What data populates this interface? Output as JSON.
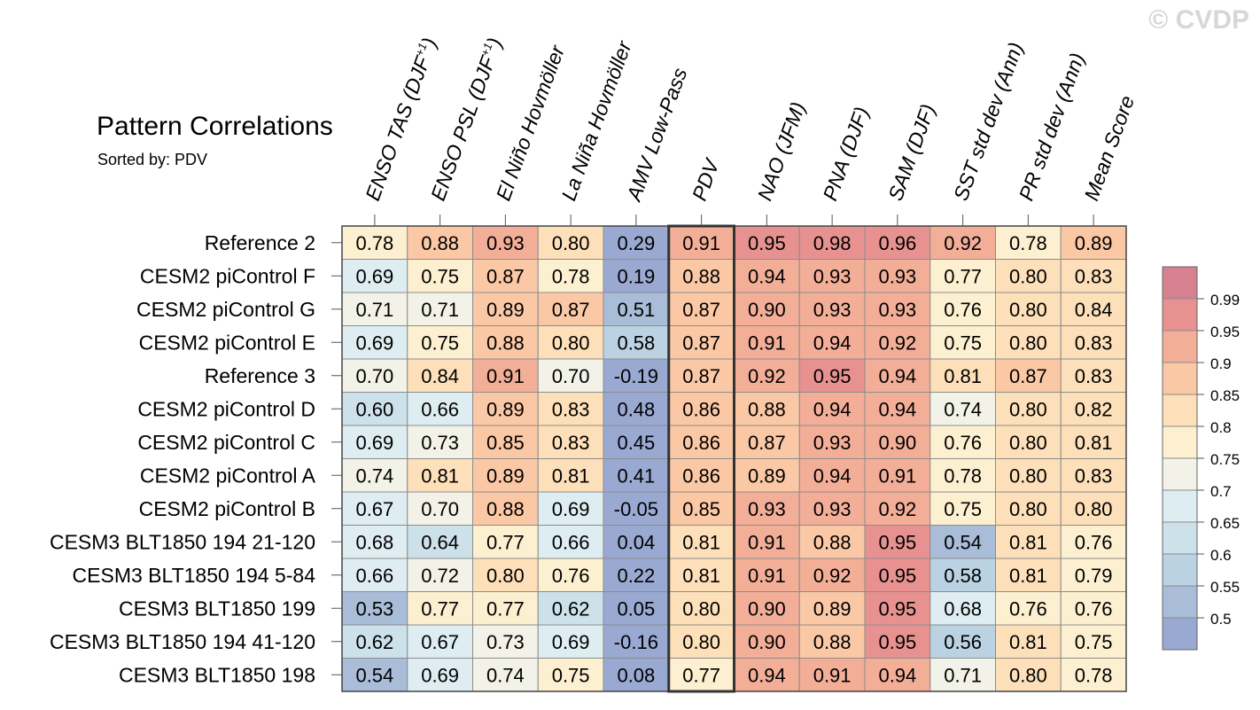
{
  "watermark": "© CVDP",
  "title": "Pattern Correlations",
  "subtitle": "Sorted by: PDV",
  "chart_data": {
    "type": "heatmap",
    "title": "Pattern Correlations",
    "subtitle": "Sorted by: PDV",
    "highlighted_column": "PDV",
    "columns": [
      {
        "label": "ENSO TAS (DJF",
        "sup": "+1",
        "tail": ")"
      },
      {
        "label": "ENSO PSL (DJF",
        "sup": "+1",
        "tail": ")"
      },
      {
        "label": "El Niño Hovmöller",
        "sup": "",
        "tail": ""
      },
      {
        "label": "La Niña Hovmöller",
        "sup": "",
        "tail": ""
      },
      {
        "label": "AMV Low-Pass",
        "sup": "",
        "tail": ""
      },
      {
        "label": "PDV",
        "sup": "",
        "tail": ""
      },
      {
        "label": "NAO (JFM)",
        "sup": "",
        "tail": ""
      },
      {
        "label": "PNA (DJF)",
        "sup": "",
        "tail": ""
      },
      {
        "label": "SAM (DJF)",
        "sup": "",
        "tail": ""
      },
      {
        "label": "SST std dev (Ann)",
        "sup": "",
        "tail": ""
      },
      {
        "label": "PR std dev (Ann)",
        "sup": "",
        "tail": ""
      },
      {
        "label": "Mean Score",
        "sup": "",
        "tail": ""
      }
    ],
    "rows": [
      {
        "name": "Reference 2",
        "values": [
          0.78,
          0.88,
          0.93,
          0.8,
          0.29,
          0.91,
          0.95,
          0.98,
          0.96,
          0.92,
          0.78,
          0.89
        ]
      },
      {
        "name": "CESM2 piControl F",
        "values": [
          0.69,
          0.75,
          0.87,
          0.78,
          0.19,
          0.88,
          0.94,
          0.93,
          0.93,
          0.77,
          0.8,
          0.83
        ]
      },
      {
        "name": "CESM2 piControl G",
        "values": [
          0.71,
          0.71,
          0.89,
          0.87,
          0.51,
          0.87,
          0.9,
          0.93,
          0.93,
          0.76,
          0.8,
          0.84
        ]
      },
      {
        "name": "CESM2 piControl E",
        "values": [
          0.69,
          0.75,
          0.88,
          0.8,
          0.58,
          0.87,
          0.91,
          0.94,
          0.92,
          0.75,
          0.8,
          0.83
        ]
      },
      {
        "name": "Reference 3",
        "values": [
          0.7,
          0.84,
          0.91,
          0.7,
          -0.19,
          0.87,
          0.92,
          0.95,
          0.94,
          0.81,
          0.87,
          0.83
        ]
      },
      {
        "name": "CESM2 piControl D",
        "values": [
          0.6,
          0.66,
          0.89,
          0.83,
          0.48,
          0.86,
          0.88,
          0.94,
          0.94,
          0.74,
          0.8,
          0.82
        ]
      },
      {
        "name": "CESM2 piControl C",
        "values": [
          0.69,
          0.73,
          0.85,
          0.83,
          0.45,
          0.86,
          0.87,
          0.93,
          0.9,
          0.76,
          0.8,
          0.81
        ]
      },
      {
        "name": "CESM2 piControl A",
        "values": [
          0.74,
          0.81,
          0.89,
          0.81,
          0.41,
          0.86,
          0.89,
          0.94,
          0.91,
          0.78,
          0.8,
          0.83
        ]
      },
      {
        "name": "CESM2 piControl B",
        "values": [
          0.67,
          0.7,
          0.88,
          0.69,
          -0.05,
          0.85,
          0.93,
          0.93,
          0.92,
          0.75,
          0.8,
          0.8
        ]
      },
      {
        "name": "CESM3 BLT1850 194 21-120",
        "values": [
          0.68,
          0.64,
          0.77,
          0.66,
          0.04,
          0.81,
          0.91,
          0.88,
          0.95,
          0.54,
          0.81,
          0.76
        ]
      },
      {
        "name": "CESM3 BLT1850 194 5-84",
        "values": [
          0.66,
          0.72,
          0.8,
          0.76,
          0.22,
          0.81,
          0.91,
          0.92,
          0.95,
          0.58,
          0.81,
          0.79
        ]
      },
      {
        "name": "CESM3 BLT1850 199",
        "values": [
          0.53,
          0.77,
          0.77,
          0.62,
          0.05,
          0.8,
          0.9,
          0.89,
          0.95,
          0.68,
          0.76,
          0.76
        ]
      },
      {
        "name": "CESM3 BLT1850 194 41-120",
        "values": [
          0.62,
          0.67,
          0.73,
          0.69,
          -0.16,
          0.8,
          0.9,
          0.88,
          0.95,
          0.56,
          0.81,
          0.75
        ]
      },
      {
        "name": "CESM3 BLT1850 198",
        "values": [
          0.54,
          0.69,
          0.74,
          0.75,
          0.08,
          0.77,
          0.94,
          0.91,
          0.94,
          0.71,
          0.8,
          0.78
        ]
      }
    ],
    "colorbar": {
      "levels": [
        0.5,
        0.55,
        0.6,
        0.65,
        0.7,
        0.75,
        0.8,
        0.85,
        0.9,
        0.95,
        0.99
      ],
      "tick_labels": [
        "0.5",
        "0.55",
        "0.6",
        "0.65",
        "0.7",
        "0.75",
        "0.8",
        "0.85",
        "0.9",
        "0.95",
        "0.99"
      ],
      "colors": [
        "#9aa9d2",
        "#a9bdd9",
        "#bad2e2",
        "#cde1ea",
        "#deedf1",
        "#f2f2e8",
        "#fcf0d0",
        "#fde0b9",
        "#fbc8a5",
        "#f3ae98",
        "#e79290",
        "#d7808f"
      ]
    }
  }
}
